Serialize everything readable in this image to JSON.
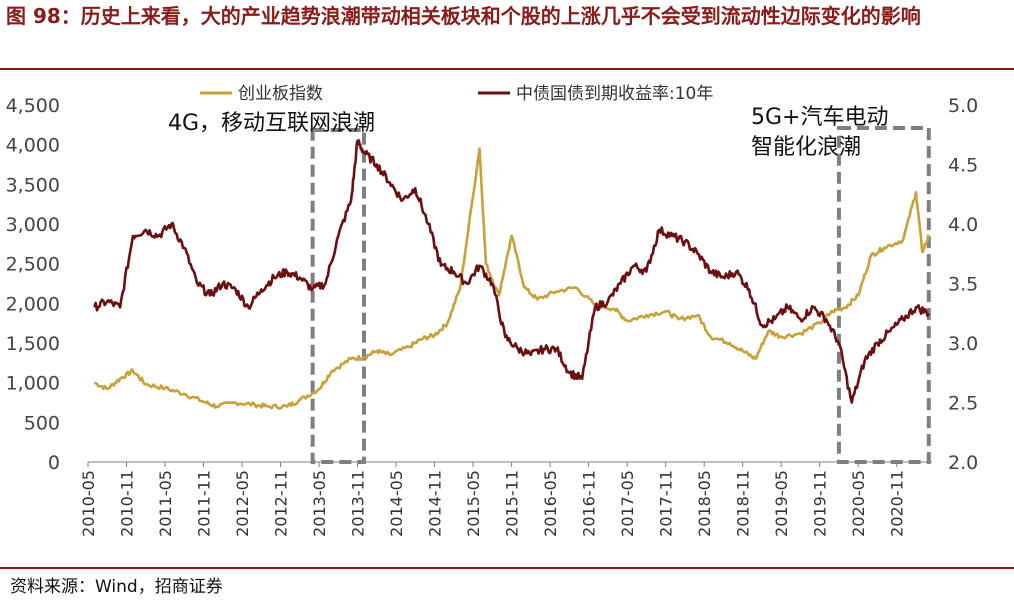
{
  "figure": {
    "title": "图 98：历史上来看，大的产业趋势浪潮带动相关板块和个股的上涨几乎不会受到流动性边际变化的影响",
    "source": "资料来源：Wind，招商证券"
  },
  "colors": {
    "gem": "#c9a13b",
    "bond": "#6b0f12",
    "brand": "#8b1a1a",
    "box": "#7f7f7f"
  },
  "chart_data": {
    "type": "line",
    "legend_position": "top",
    "grid": false,
    "x_tick_labels": [
      "2010-05",
      "2010-11",
      "2011-05",
      "2011-11",
      "2012-05",
      "2012-11",
      "2013-05",
      "2013-11",
      "2014-05",
      "2014-11",
      "2015-05",
      "2015-11",
      "2016-05",
      "2016-11",
      "2017-05",
      "2017-11",
      "2018-05",
      "2018-11",
      "2019-05",
      "2019-11",
      "2020-05",
      "2020-11"
    ],
    "y_left": {
      "ticks": [
        "0",
        "500",
        "1,000",
        "1,500",
        "2,000",
        "2,500",
        "3,000",
        "3,500",
        "4,000",
        "4,500"
      ],
      "range": [
        0,
        4500
      ]
    },
    "y_right": {
      "ticks": [
        "2.0",
        "2.5",
        "3.0",
        "3.5",
        "4.0",
        "4.5",
        "5.0"
      ],
      "range": [
        2.0,
        5.0
      ]
    },
    "series": [
      {
        "name": "创业板指数",
        "axis": "left",
        "x": [
          "2010-06",
          "2010-08",
          "2010-10",
          "2010-12",
          "2011-02",
          "2011-05",
          "2011-08",
          "2011-11",
          "2012-01",
          "2012-04",
          "2012-07",
          "2012-09",
          "2012-12",
          "2013-02",
          "2013-05",
          "2013-07",
          "2013-10",
          "2013-12",
          "2014-02",
          "2014-04",
          "2014-07",
          "2014-09",
          "2014-11",
          "2015-01",
          "2015-03",
          "2015-06",
          "2015-07",
          "2015-09",
          "2015-11",
          "2016-01",
          "2016-03",
          "2016-06",
          "2016-09",
          "2016-12",
          "2017-03",
          "2017-05",
          "2017-08",
          "2017-11",
          "2018-01",
          "2018-04",
          "2018-06",
          "2018-09",
          "2018-11",
          "2019-01",
          "2019-03",
          "2019-05",
          "2019-08",
          "2019-11",
          "2020-01",
          "2020-03",
          "2020-05",
          "2020-07",
          "2020-09",
          "2020-12",
          "2021-02",
          "2021-03",
          "2021-04"
        ],
        "values": [
          1000,
          920,
          1050,
          1150,
          980,
          930,
          860,
          760,
          700,
          750,
          720,
          700,
          700,
          780,
          920,
          1150,
          1300,
          1320,
          1400,
          1350,
          1450,
          1550,
          1600,
          1750,
          2200,
          3950,
          2500,
          2100,
          2850,
          2200,
          2050,
          2150,
          2200,
          1980,
          1930,
          1780,
          1850,
          1900,
          1800,
          1850,
          1580,
          1500,
          1400,
          1300,
          1650,
          1580,
          1620,
          1750,
          1900,
          1950,
          2100,
          2600,
          2700,
          2800,
          3400,
          2650,
          2850
        ]
      },
      {
        "name": "中债国债到期收益率:10年",
        "axis": "right",
        "x": [
          "2010-06",
          "2010-08",
          "2010-10",
          "2010-12",
          "2011-02",
          "2011-04",
          "2011-06",
          "2011-08",
          "2011-10",
          "2011-12",
          "2012-02",
          "2012-04",
          "2012-06",
          "2012-08",
          "2012-10",
          "2012-12",
          "2013-02",
          "2013-04",
          "2013-06",
          "2013-08",
          "2013-10",
          "2013-11",
          "2013-12",
          "2014-02",
          "2014-04",
          "2014-06",
          "2014-08",
          "2014-10",
          "2014-12",
          "2015-02",
          "2015-04",
          "2015-06",
          "2015-08",
          "2015-10",
          "2015-12",
          "2016-02",
          "2016-04",
          "2016-06",
          "2016-08",
          "2016-10",
          "2016-12",
          "2017-02",
          "2017-04",
          "2017-06",
          "2017-08",
          "2017-10",
          "2017-12",
          "2018-02",
          "2018-04",
          "2018-06",
          "2018-08",
          "2018-10",
          "2018-12",
          "2019-02",
          "2019-04",
          "2019-06",
          "2019-08",
          "2019-10",
          "2019-12",
          "2020-02",
          "2020-04",
          "2020-06",
          "2020-08",
          "2020-10",
          "2020-12",
          "2021-02",
          "2021-04"
        ],
        "values": [
          3.3,
          3.35,
          3.3,
          3.9,
          3.95,
          3.9,
          4.0,
          3.8,
          3.5,
          3.4,
          3.5,
          3.45,
          3.3,
          3.45,
          3.55,
          3.6,
          3.55,
          3.45,
          3.5,
          3.9,
          4.2,
          4.7,
          4.6,
          4.5,
          4.35,
          4.2,
          4.3,
          4.0,
          3.65,
          3.6,
          3.5,
          3.65,
          3.5,
          3.05,
          2.95,
          2.9,
          2.95,
          2.95,
          2.75,
          2.7,
          3.3,
          3.35,
          3.5,
          3.65,
          3.6,
          3.95,
          3.9,
          3.85,
          3.75,
          3.6,
          3.55,
          3.6,
          3.45,
          3.15,
          3.2,
          3.3,
          3.2,
          3.3,
          3.2,
          3.0,
          2.5,
          2.85,
          3.0,
          3.1,
          3.2,
          3.3,
          3.25
        ]
      }
    ],
    "annotations": [
      {
        "label": "4G，移动互联网浪潮",
        "x_start": "2013-04",
        "x_end": "2013-12"
      },
      {
        "label": "5G+汽车电动智能化浪潮",
        "x_start": "2020-02",
        "x_end": "2021-04"
      }
    ]
  }
}
